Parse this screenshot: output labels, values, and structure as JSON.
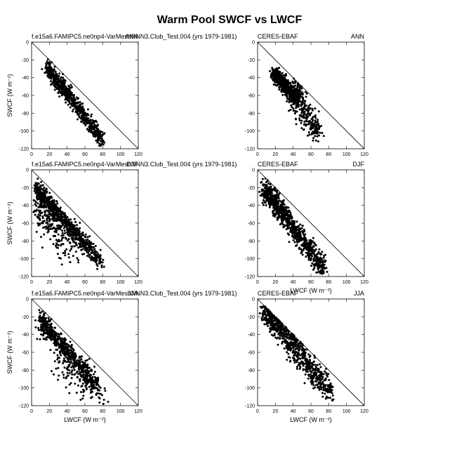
{
  "figure": {
    "title": "Warm Pool SWCF vs LWCF"
  },
  "chart_data": [
    {
      "type": "scatter",
      "left_label": "f.e15a6.FAMIPC5.ne0np4-VarMeshNNN3.Club_Test.004 (yrs 1979-1981)",
      "right_label": "ANN",
      "ylabel": "SWCF (W m⁻²)",
      "xlabel": "",
      "xlim": [
        0,
        120
      ],
      "ylim": [
        -120,
        0
      ],
      "xticks": [
        0,
        20,
        40,
        60,
        80,
        100,
        120
      ],
      "yticks": [
        0,
        -20,
        -40,
        -60,
        -80,
        -100,
        -120
      ],
      "reference_line": "y = -x",
      "clusters": [
        {
          "x0": 18,
          "y0": -30,
          "x1": 80,
          "y1": -110,
          "n": 700,
          "spread": 4.5
        }
      ]
    },
    {
      "type": "scatter",
      "left_label": "CERES-EBAF",
      "right_label": "ANN",
      "ylabel": "",
      "xlabel": "",
      "xlim": [
        0,
        120
      ],
      "ylim": [
        -120,
        0
      ],
      "xticks": [
        0,
        20,
        40,
        60,
        80,
        100,
        120
      ],
      "yticks": [
        0,
        -20,
        -40,
        -60,
        -80,
        -100,
        -120
      ],
      "reference_line": "y = -x",
      "clusters": [
        {
          "x0": 18,
          "y0": -35,
          "x1": 45,
          "y1": -65,
          "n": 600,
          "spread": 4
        },
        {
          "x0": 40,
          "y0": -55,
          "x1": 68,
          "y1": -105,
          "n": 300,
          "spread": 8
        }
      ]
    },
    {
      "type": "scatter",
      "left_label": "f.e15a6.FAMIPC5.ne0np4-VarMeshNNN3.Club_Test.004 (yrs 1979-1981)",
      "right_label": "DJF",
      "ylabel": "SWCF (W m⁻²)",
      "xlabel": "",
      "xlim": [
        0,
        120
      ],
      "ylim": [
        -120,
        0
      ],
      "xticks": [
        0,
        20,
        40,
        60,
        80,
        100,
        120
      ],
      "yticks": [
        0,
        -20,
        -40,
        -60,
        -80,
        -100,
        -120
      ],
      "reference_line": "y = -x",
      "clusters": [
        {
          "x0": 6,
          "y0": -22,
          "x1": 78,
          "y1": -104,
          "n": 700,
          "spread": 5
        },
        {
          "x0": 8,
          "y0": -40,
          "x1": 45,
          "y1": -85,
          "n": 250,
          "spread": 12
        }
      ]
    },
    {
      "type": "scatter",
      "left_label": "CERES-EBAF",
      "right_label": "DJF",
      "ylabel": "",
      "xlabel": "LWCF (W m⁻²)",
      "xlim": [
        0,
        120
      ],
      "ylim": [
        -120,
        0
      ],
      "xticks": [
        0,
        20,
        40,
        60,
        80,
        100,
        120
      ],
      "yticks": [
        0,
        -20,
        -40,
        -60,
        -80,
        -100,
        -120
      ],
      "reference_line": "y = -x",
      "clusters": [
        {
          "x0": 8,
          "y0": -22,
          "x1": 75,
          "y1": -112,
          "n": 900,
          "spread": 6
        }
      ]
    },
    {
      "type": "scatter",
      "left_label": "f.e15a6.FAMIPC5.ne0np4-VarMeshNNN3.Club_Test.004 (yrs 1979-1981)",
      "right_label": "JJA",
      "ylabel": "SWCF (W m⁻²)",
      "xlabel": "LWCF (W m⁻²)",
      "xlim": [
        0,
        120
      ],
      "ylim": [
        -120,
        0
      ],
      "xticks": [
        0,
        20,
        40,
        60,
        80,
        100,
        120
      ],
      "yticks": [
        0,
        -20,
        -40,
        -60,
        -80,
        -100,
        -120
      ],
      "reference_line": "y = -x",
      "clusters": [
        {
          "x0": 10,
          "y0": -25,
          "x1": 75,
          "y1": -100,
          "n": 650,
          "spread": 6
        },
        {
          "x0": 30,
          "y0": -70,
          "x1": 85,
          "y1": -118,
          "n": 120,
          "spread": 9
        }
      ]
    },
    {
      "type": "scatter",
      "left_label": "CERES-EBAF",
      "right_label": "JJA",
      "ylabel": "",
      "xlabel": "LWCF (W m⁻²)",
      "xlim": [
        0,
        120
      ],
      "ylim": [
        -120,
        0
      ],
      "xticks": [
        0,
        20,
        40,
        60,
        80,
        100,
        120
      ],
      "yticks": [
        0,
        -20,
        -40,
        -60,
        -80,
        -100,
        -120
      ],
      "reference_line": "y = -x",
      "clusters": [
        {
          "x0": 8,
          "y0": -12,
          "x1": 82,
          "y1": -105,
          "n": 800,
          "spread": 7
        }
      ]
    }
  ]
}
